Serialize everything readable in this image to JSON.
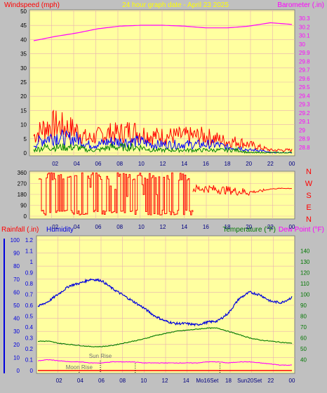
{
  "header": {
    "left_label": "Windspeed (mph)",
    "center_label": "24 hour graph date - April 23 2025",
    "right_label": "Barometer (.in)"
  },
  "colors": {
    "background": "#c0c0c0",
    "plot_bg": "#ffffa0",
    "grid": "#e8b0b0",
    "gust": "#ff0000",
    "avg_wind": "#0000ff",
    "low_wind": "#008000",
    "barometer": "#ff00ff",
    "humidity": "#0000dd",
    "temperature": "#007700",
    "dewpoint": "#ff00ff",
    "rain": "#ff0000",
    "direction": "#ff0000"
  },
  "chart_data": [
    {
      "type": "line",
      "name": "wind_barometer",
      "x_ticks": [
        "02",
        "04",
        "06",
        "08",
        "10",
        "12",
        "14",
        "16",
        "18",
        "20",
        "22",
        "00"
      ],
      "left_axis": {
        "label": "Windspeed (mph)",
        "ylim": [
          0,
          50
        ],
        "ticks": [
          0,
          5,
          10,
          15,
          20,
          25,
          30,
          35,
          40,
          45,
          50
        ]
      },
      "right_axis": {
        "label": "Barometer (.in)",
        "ylim": [
          28.7,
          30.4
        ],
        "ticks": [
          "28.8",
          "28.9",
          "29",
          "29.1",
          "29.2",
          "29.3",
          "29.4",
          "29.5",
          "29.6",
          "29.7",
          "29.8",
          "29.9",
          "30",
          "30.1",
          "30.2",
          "30.3"
        ]
      },
      "series": [
        {
          "key": "gust",
          "hours": [
            0,
            1,
            2,
            3,
            4,
            5,
            6,
            7,
            8,
            9,
            10,
            11,
            12,
            13,
            14,
            15,
            16,
            17,
            18,
            19,
            20,
            21,
            22,
            23,
            24
          ],
          "values": [
            6,
            9,
            10,
            9,
            8,
            5,
            6,
            7,
            7,
            8,
            7,
            6,
            6,
            6,
            6,
            6,
            6,
            5,
            4,
            4,
            3,
            2,
            1,
            1,
            1
          ]
        },
        {
          "key": "avg",
          "hours": [
            0,
            1,
            2,
            3,
            4,
            5,
            6,
            7,
            8,
            9,
            10,
            11,
            12,
            13,
            14,
            15,
            16,
            17,
            18,
            19,
            20,
            21,
            22,
            23,
            24
          ],
          "values": [
            3,
            5,
            6,
            5,
            5,
            3,
            3,
            4,
            4,
            4,
            4,
            3,
            3,
            3,
            3,
            3,
            3,
            3,
            2,
            2,
            1,
            1,
            0,
            0,
            0
          ]
        },
        {
          "key": "low",
          "hours": [
            0,
            1,
            2,
            3,
            4,
            5,
            6,
            7,
            8,
            9,
            10,
            11,
            12,
            13,
            14,
            15,
            16,
            17,
            18,
            19,
            20,
            21,
            22,
            23,
            24
          ],
          "values": [
            1,
            2,
            2,
            2,
            2,
            1,
            1,
            2,
            2,
            2,
            2,
            1,
            1,
            1,
            1,
            1,
            1,
            1,
            1,
            1,
            0,
            0,
            0,
            0,
            0
          ]
        },
        {
          "key": "barometer",
          "hours": [
            0,
            2,
            4,
            6,
            8,
            10,
            12,
            14,
            16,
            18,
            20,
            22,
            23,
            24
          ],
          "values": [
            30.04,
            30.09,
            30.13,
            30.18,
            30.21,
            30.22,
            30.22,
            30.21,
            30.19,
            30.19,
            30.21,
            30.25,
            30.24,
            30.23
          ]
        }
      ]
    },
    {
      "type": "line",
      "name": "wind_direction",
      "x_ticks": [
        "02",
        "04",
        "06",
        "08",
        "10",
        "12",
        "14",
        "16",
        "18",
        "20",
        "22",
        "00"
      ],
      "left_axis": {
        "ylim": [
          0,
          360
        ],
        "ticks": [
          0,
          90,
          180,
          270,
          360
        ]
      },
      "right_labels": [
        "N",
        "W",
        "S",
        "E",
        "N"
      ],
      "series": [
        {
          "key": "direction",
          "hours": [
            15,
            16,
            17,
            18,
            19,
            20,
            21,
            22,
            23,
            24
          ],
          "values": [
            225,
            230,
            220,
            215,
            205,
            200,
            205,
            225,
            230,
            230
          ]
        }
      ]
    },
    {
      "type": "line",
      "name": "humidity_temperature",
      "x_ticks": [
        "02",
        "04",
        "06",
        "08",
        "10",
        "12",
        "14",
        "Mo16Set",
        "18",
        "Sun20Set",
        "22",
        "00"
      ],
      "left_labels": {
        "rain": "Rainfall (.in)",
        "humidity": "Humidity",
        "temperature": "Temperature (°F)",
        "dewpoint": "Dew Point (°F)"
      },
      "rain_axis": {
        "ylim": [
          0,
          1.2
        ],
        "ticks": [
          "0",
          "0.1",
          "0.2",
          "0.3",
          "0.4",
          "0.5",
          "0.6",
          "0.7",
          "0.8",
          "0.9",
          "1",
          "1.1",
          "1.2"
        ]
      },
      "humidity_axis": {
        "ylim": [
          0,
          100
        ],
        "ticks": [
          0,
          10,
          20,
          30,
          40,
          50,
          60,
          70,
          80,
          90,
          100
        ]
      },
      "temperature_axis": {
        "ylim": [
          30,
          150
        ],
        "ticks": [
          40,
          50,
          60,
          70,
          80,
          90,
          100,
          110,
          120,
          130,
          140
        ]
      },
      "annotations": [
        {
          "label": "Sun Rise",
          "hour": 5.9
        },
        {
          "label": "Moon Rise",
          "hour": 3.9
        }
      ],
      "series": [
        {
          "key": "humidity",
          "hours": [
            0,
            1,
            2,
            3,
            4,
            5,
            6,
            7,
            8,
            9,
            10,
            11,
            12,
            13,
            14,
            15,
            16,
            17,
            18,
            19,
            20,
            21,
            22,
            23,
            24
          ],
          "values": [
            49,
            53,
            59,
            65,
            67,
            70,
            69,
            63,
            58,
            53,
            48,
            42,
            38,
            36,
            36,
            35,
            37,
            38,
            44,
            55,
            60,
            58,
            53,
            52,
            56
          ]
        },
        {
          "key": "temperature",
          "hours": [
            0,
            1,
            2,
            3,
            4,
            5,
            6,
            7,
            8,
            9,
            10,
            11,
            12,
            13,
            14,
            15,
            16,
            17,
            18,
            19,
            20,
            21,
            22,
            23,
            24
          ],
          "values": [
            57,
            57,
            55,
            54,
            53,
            52,
            52,
            53,
            55,
            57,
            59,
            62,
            64,
            66,
            67,
            68,
            69,
            69,
            66,
            63,
            60,
            58,
            57,
            56,
            55
          ]
        },
        {
          "key": "dewpoint",
          "hours": [
            0,
            1,
            2,
            3,
            4,
            5,
            6,
            7,
            8,
            9,
            10,
            11,
            12,
            13,
            14,
            15,
            16,
            17,
            18,
            19,
            20,
            21,
            22,
            23,
            24
          ],
          "values": [
            39,
            40,
            39,
            38,
            38,
            37,
            37,
            38,
            38,
            38,
            37,
            37,
            37,
            37,
            37,
            37,
            38,
            38,
            37,
            38,
            38,
            37,
            36,
            35,
            35
          ]
        },
        {
          "key": "rain",
          "hours": [
            0,
            24
          ],
          "values": [
            0,
            0
          ]
        }
      ]
    }
  ]
}
